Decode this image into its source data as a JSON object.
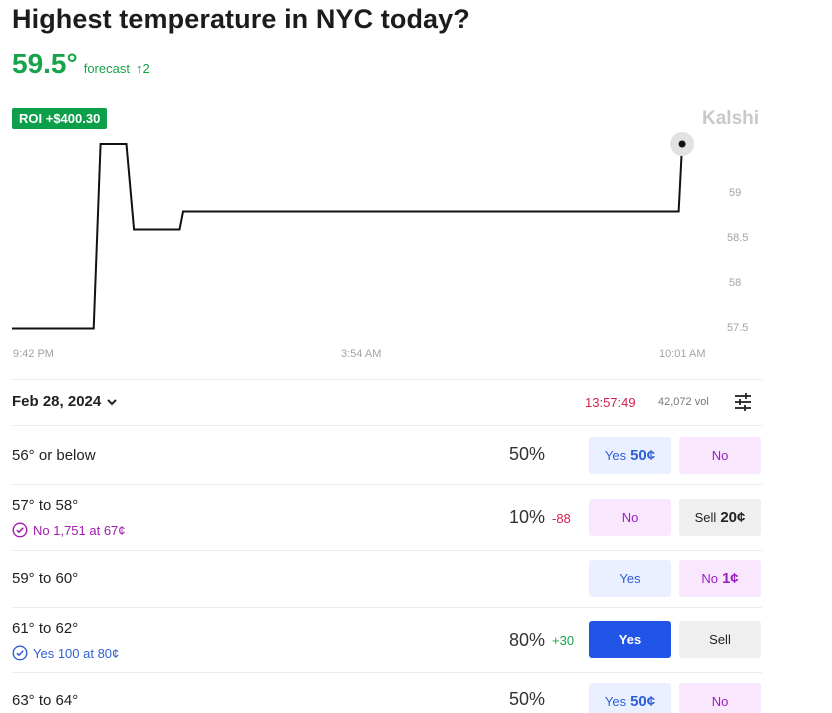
{
  "title": "Highest temperature in NYC today?",
  "forecast": {
    "value": "59.5°",
    "label": "forecast",
    "change": "↑2"
  },
  "roi_badge": "ROI +$400.30",
  "brand": "Kalshi",
  "colors": {
    "green": "#16a34a",
    "yes": "#2155e8",
    "no": "#9a1fbf",
    "timer": "#d0214c"
  },
  "chart_data": {
    "type": "line",
    "x_ticks": [
      "9:42 PM",
      "3:54 AM",
      "10:01 AM"
    ],
    "y_ticks": [
      "59",
      "58.5",
      "58",
      "57.5"
    ],
    "ylim": [
      57.5,
      59.5
    ],
    "series": [
      {
        "points": [
          [
            0,
            57.45
          ],
          [
            0.117,
            57.45
          ],
          [
            0.127,
            59.5
          ],
          [
            0.164,
            59.5
          ],
          [
            0.175,
            58.55
          ],
          [
            0.24,
            58.55
          ],
          [
            0.245,
            58.75
          ],
          [
            0.955,
            58.75
          ],
          [
            0.96,
            59.5
          ]
        ]
      }
    ],
    "grid": false
  },
  "market": {
    "date": "Feb 28, 2024",
    "timer": "13:57:49",
    "volume": "42,072 vol",
    "filters_icon": "sliders-icon"
  },
  "rows": [
    {
      "range": "56° or below",
      "percent": "50%",
      "change": "",
      "position": "",
      "btn1": {
        "label": "Yes",
        "price": "50¢"
      },
      "btn2": {
        "label": "No",
        "price": ""
      }
    },
    {
      "range": "57° to 58°",
      "percent": "10%",
      "change": "-88",
      "position": "No 1,751 at 67¢",
      "btn1": {
        "label": "No",
        "price": ""
      },
      "btn2": {
        "label": "Sell",
        "price": "20¢"
      }
    },
    {
      "range": "59° to 60°",
      "percent": "",
      "change": "",
      "position": "",
      "btn1": {
        "label": "Yes",
        "price": ""
      },
      "btn2": {
        "label": "No",
        "price": "1¢"
      }
    },
    {
      "range": "61° to 62°",
      "percent": "80%",
      "change": "+30",
      "position": "Yes 100 at 80¢",
      "btn1": {
        "label": "Yes",
        "price": ""
      },
      "btn2": {
        "label": "Sell",
        "price": ""
      }
    },
    {
      "range": "63° to 64°",
      "percent": "50%",
      "change": "",
      "position": "",
      "btn1": {
        "label": "Yes",
        "price": "50¢"
      },
      "btn2": {
        "label": "No",
        "price": ""
      }
    }
  ]
}
